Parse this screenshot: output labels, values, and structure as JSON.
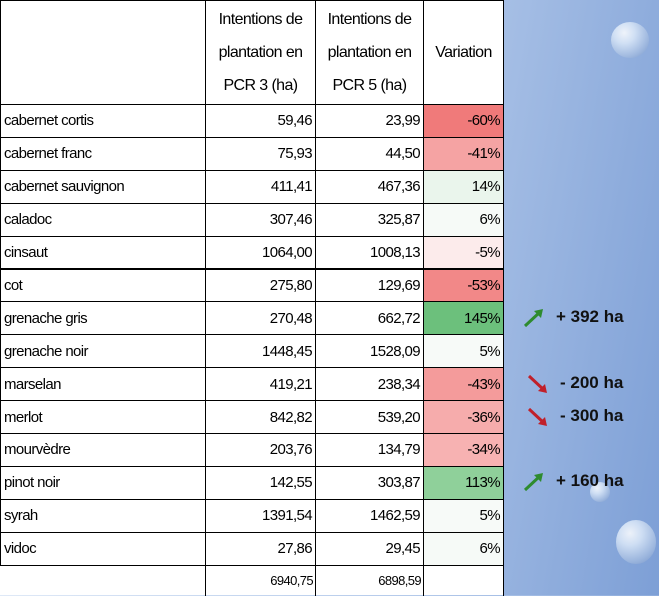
{
  "table": {
    "header": [
      [],
      [
        "Intentions de",
        "plantation en",
        "PCR 3 (ha)"
      ],
      [
        "Intentions de",
        "plantation en",
        "PCR 5 (ha)"
      ],
      [
        "Variation"
      ]
    ],
    "rows": [
      {
        "name": "cabernet cortis",
        "pcr3": "59,46",
        "pcr5": "23,99",
        "variation": "-60%",
        "color": "#f07a7a"
      },
      {
        "name": "cabernet franc",
        "pcr3": "75,93",
        "pcr5": "44,50",
        "variation": "-41%",
        "color": "#f5a3a3"
      },
      {
        "name": "cabernet sauvignon",
        "pcr3": "411,41",
        "pcr5": "467,36",
        "variation": "14%",
        "color": "#eaf5ec"
      },
      {
        "name": "caladoc",
        "pcr3": "307,46",
        "pcr5": "325,87",
        "variation": "6%",
        "color": "#f6faf7"
      },
      {
        "name": "cinsaut",
        "pcr3": "1064,00",
        "pcr5": "1008,13",
        "variation": "-5%",
        "color": "#fcebeb"
      },
      {
        "name": "cot",
        "pcr3": "275,80",
        "pcr5": "129,69",
        "variation": "-53%",
        "color": "#f28888"
      },
      {
        "name": "grenache gris",
        "pcr3": "270,48",
        "pcr5": "662,72",
        "variation": "145%",
        "color": "#6cc07c"
      },
      {
        "name": "grenache noir",
        "pcr3": "1448,45",
        "pcr5": "1528,09",
        "variation": "5%",
        "color": "#f7faf8"
      },
      {
        "name": "marselan",
        "pcr3": "419,21",
        "pcr5": "238,34",
        "variation": "-43%",
        "color": "#f49b9b"
      },
      {
        "name": "merlot",
        "pcr3": "842,82",
        "pcr5": "539,20",
        "variation": "-36%",
        "color": "#f6acac"
      },
      {
        "name": "mourvèdre",
        "pcr3": "203,76",
        "pcr5": "134,79",
        "variation": "-34%",
        "color": "#f7b2b2"
      },
      {
        "name": "pinot noir",
        "pcr3": "142,55",
        "pcr5": "303,87",
        "variation": "113%",
        "color": "#8fd09a"
      },
      {
        "name": "syrah",
        "pcr3": "1391,54",
        "pcr5": "1462,59",
        "variation": "5%",
        "color": "#f7faf8"
      },
      {
        "name": "vidoc",
        "pcr3": "27,86",
        "pcr5": "29,45",
        "variation": "6%",
        "color": "#f6faf7"
      }
    ],
    "totals": {
      "pcr3": "6940,75",
      "pcr5": "6898,59"
    }
  },
  "annotations": [
    {
      "row": 6,
      "text": "+ 392 ha",
      "direction": "up"
    },
    {
      "row": 8,
      "text": "- 200 ha",
      "direction": "down"
    },
    {
      "row": 9,
      "text": "- 300 ha",
      "direction": "down"
    },
    {
      "row": 11,
      "text": "+ 160 ha",
      "direction": "up"
    }
  ]
}
